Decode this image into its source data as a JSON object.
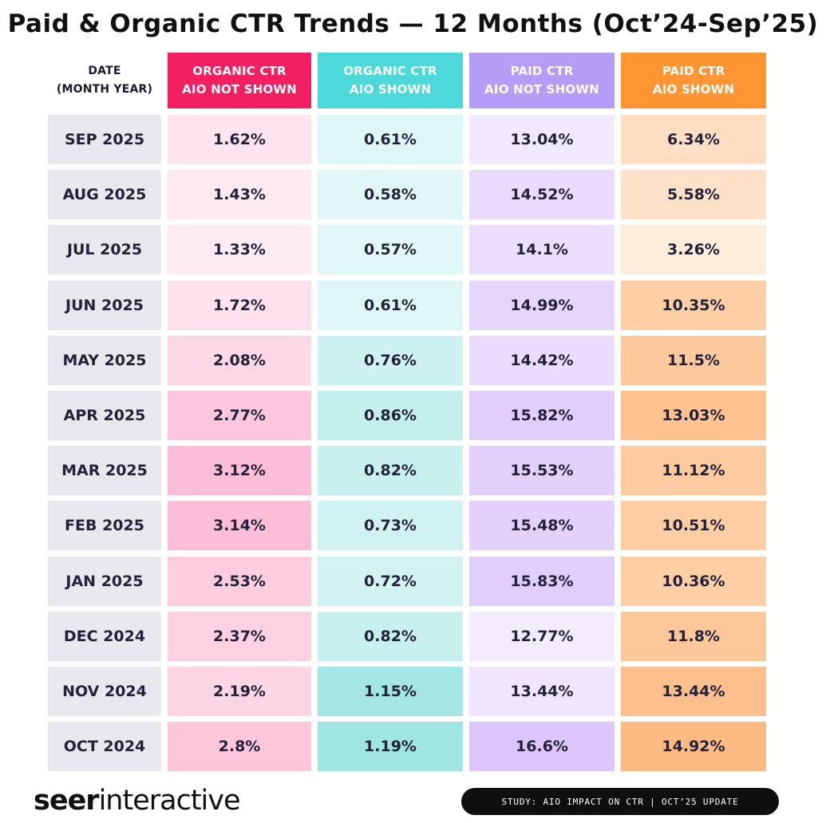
{
  "title": "Paid & Organic CTR Trends — 12 Months (Oct’24-Sep’25)",
  "headers": {
    "date": [
      "DATE",
      "(MONTH YEAR)"
    ],
    "organic_not_shown": [
      "ORGANIC CTR",
      "AIO NOT SHOWN"
    ],
    "organic_shown": [
      "ORGANIC CTR",
      "AIO SHOWN"
    ],
    "paid_not_shown": [
      "PAID CTR",
      "AIO NOT SHOWN"
    ],
    "paid_shown": [
      "PAID CTR",
      "AIO SHOWN"
    ]
  },
  "colors": {
    "organic_not_shown": "#f21f63",
    "organic_shown": "#4dd9da",
    "paid_not_shown": "#b49cf7",
    "paid_shown": "#ff9533",
    "date_cell": "#e8e8ee"
  },
  "chart_data": {
    "type": "table",
    "columns": [
      "DATE (MONTH YEAR)",
      "ORGANIC CTR AIO NOT SHOWN",
      "ORGANIC CTR AIO SHOWN",
      "PAID CTR AIO NOT SHOWN",
      "PAID CTR AIO SHOWN"
    ],
    "rows": [
      {
        "date": "SEP 2025",
        "organic_not_shown": "1.62%",
        "organic_shown": "0.61%",
        "paid_not_shown": "13.04%",
        "paid_shown": "6.34%"
      },
      {
        "date": "AUG 2025",
        "organic_not_shown": "1.43%",
        "organic_shown": "0.58%",
        "paid_not_shown": "14.52%",
        "paid_shown": "5.58%"
      },
      {
        "date": "JUL 2025",
        "organic_not_shown": "1.33%",
        "organic_shown": "0.57%",
        "paid_not_shown": "14.1%",
        "paid_shown": "3.26%"
      },
      {
        "date": "JUN 2025",
        "organic_not_shown": "1.72%",
        "organic_shown": "0.61%",
        "paid_not_shown": "14.99%",
        "paid_shown": "10.35%"
      },
      {
        "date": "MAY 2025",
        "organic_not_shown": "2.08%",
        "organic_shown": "0.76%",
        "paid_not_shown": "14.42%",
        "paid_shown": "11.5%"
      },
      {
        "date": "APR 2025",
        "organic_not_shown": "2.77%",
        "organic_shown": "0.86%",
        "paid_not_shown": "15.82%",
        "paid_shown": "13.03%"
      },
      {
        "date": "MAR 2025",
        "organic_not_shown": "3.12%",
        "organic_shown": "0.82%",
        "paid_not_shown": "15.53%",
        "paid_shown": "11.12%"
      },
      {
        "date": "FEB 2025",
        "organic_not_shown": "3.14%",
        "organic_shown": "0.73%",
        "paid_not_shown": "15.48%",
        "paid_shown": "10.51%"
      },
      {
        "date": "JAN 2025",
        "organic_not_shown": "2.53%",
        "organic_shown": "0.72%",
        "paid_not_shown": "15.83%",
        "paid_shown": "10.36%"
      },
      {
        "date": "DEC 2024",
        "organic_not_shown": "2.37%",
        "organic_shown": "0.82%",
        "paid_not_shown": "12.77%",
        "paid_shown": "11.8%"
      },
      {
        "date": "NOV 2024",
        "organic_not_shown": "2.19%",
        "organic_shown": "1.15%",
        "paid_not_shown": "13.44%",
        "paid_shown": "13.44%"
      },
      {
        "date": "OCT 2024",
        "organic_not_shown": "2.8%",
        "organic_shown": "1.19%",
        "paid_not_shown": "16.6%",
        "paid_shown": "14.92%"
      }
    ]
  },
  "brand": {
    "bold": "seer",
    "light": "interactive"
  },
  "footer_badge": "STUDY: AIO IMPACT ON CTR | OCT’25 UPDATE"
}
